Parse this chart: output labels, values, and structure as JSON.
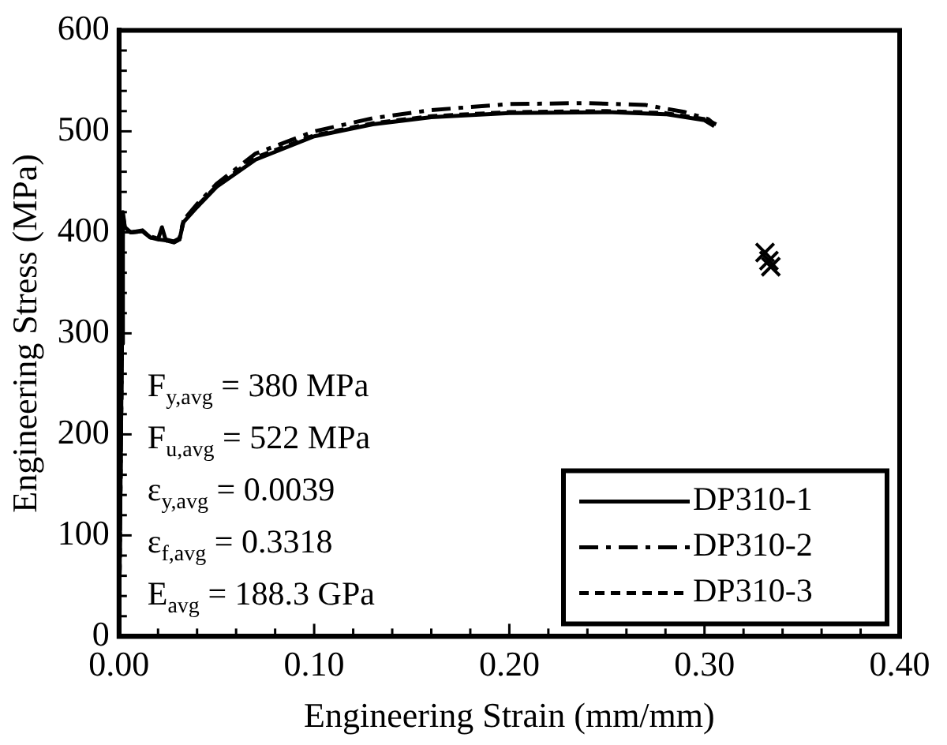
{
  "chart_data": {
    "type": "line",
    "xlabel": "Engineering Strain (mm/mm)",
    "ylabel": "Engineering Stress (MPa)",
    "xlim": [
      0,
      0.4
    ],
    "ylim": [
      0,
      600
    ],
    "xticks": [
      {
        "value": 0,
        "label": "0.00"
      },
      {
        "value": 0.02,
        "label": null
      },
      {
        "value": 0.04,
        "label": null
      },
      {
        "value": 0.06,
        "label": null
      },
      {
        "value": 0.08,
        "label": null
      },
      {
        "value": 0.1,
        "label": "0.10"
      },
      {
        "value": 0.12,
        "label": null
      },
      {
        "value": 0.14,
        "label": null
      },
      {
        "value": 0.16,
        "label": null
      },
      {
        "value": 0.18,
        "label": null
      },
      {
        "value": 0.2,
        "label": "0.20"
      },
      {
        "value": 0.22,
        "label": null
      },
      {
        "value": 0.24,
        "label": null
      },
      {
        "value": 0.26,
        "label": null
      },
      {
        "value": 0.28,
        "label": null
      },
      {
        "value": 0.3,
        "label": "0.30"
      },
      {
        "value": 0.32,
        "label": null
      },
      {
        "value": 0.34,
        "label": null
      },
      {
        "value": 0.36,
        "label": null
      },
      {
        "value": 0.38,
        "label": null
      },
      {
        "value": 0.4,
        "label": "0.40"
      }
    ],
    "yticks": [
      0,
      {
        "value": 20,
        "label": null
      },
      {
        "value": 40,
        "label": null
      },
      {
        "value": 60,
        "label": null
      },
      {
        "value": 80,
        "label": null
      },
      100,
      {
        "value": 120,
        "label": null
      },
      {
        "value": 140,
        "label": null
      },
      {
        "value": 160,
        "label": null
      },
      {
        "value": 180,
        "label": null
      },
      200,
      {
        "value": 220,
        "label": null
      },
      {
        "value": 240,
        "label": null
      },
      {
        "value": 260,
        "label": null
      },
      {
        "value": 280,
        "label": null
      },
      300,
      {
        "value": 320,
        "label": null
      },
      {
        "value": 340,
        "label": null
      },
      {
        "value": 360,
        "label": null
      },
      {
        "value": 380,
        "label": null
      },
      400,
      {
        "value": 420,
        "label": null
      },
      {
        "value": 440,
        "label": null
      },
      {
        "value": 460,
        "label": null
      },
      {
        "value": 480,
        "label": null
      },
      500,
      {
        "value": 520,
        "label": null
      },
      {
        "value": 540,
        "label": null
      },
      {
        "value": 560,
        "label": null
      },
      {
        "value": 580,
        "label": null
      },
      600
    ],
    "grid": false,
    "legend": "bottom right",
    "annotations": [
      "F$_{y,avg}$ = 380 MPa",
      "F$_{u,avg}$ = 522 MPa",
      "ε$_{y,avg}$ = 0.0039",
      "ε$_{f,avg}$ = 0.3318",
      "E$_{avg}$ = 188.3 GPa"
    ],
    "series": [
      {
        "name": "DP310-1",
        "color": "#000000",
        "line_style": "solid",
        "marker": "none",
        "x": [
          0,
          0.0015,
          0.002,
          0.003,
          0.006,
          0.012,
          0.016,
          0.02,
          0.022,
          0.024,
          0.028,
          0.031,
          0.033,
          0.04,
          0.05,
          0.07,
          0.1,
          0.13,
          0.16,
          0.2,
          0.25,
          0.28,
          0.3,
          0.305
        ],
        "values": [
          0,
          290,
          420,
          405,
          400,
          402,
          395,
          393,
          405,
          392,
          390,
          393,
          410,
          425,
          445,
          472,
          495,
          507,
          514,
          518,
          519,
          517,
          511,
          505
        ]
      },
      {
        "name": "DP310-2",
        "color": "#000000",
        "line_style": "dashdot",
        "marker": "none",
        "x": [
          0,
          0.0015,
          0.002,
          0.003,
          0.006,
          0.012,
          0.016,
          0.02,
          0.024,
          0.028,
          0.031,
          0.033,
          0.04,
          0.05,
          0.07,
          0.1,
          0.13,
          0.16,
          0.2,
          0.24,
          0.27,
          0.29,
          0.302,
          0.305
        ],
        "values": [
          0,
          290,
          415,
          403,
          400,
          401,
          396,
          394,
          393,
          391,
          394,
          412,
          428,
          448,
          478,
          500,
          513,
          521,
          527,
          528,
          526,
          519,
          512,
          507
        ]
      },
      {
        "name": "DP310-3",
        "color": "#000000",
        "line_style": "dashed",
        "marker": "none",
        "x": [
          0,
          0.0015,
          0.002,
          0.003,
          0.006,
          0.012,
          0.016,
          0.02,
          0.024,
          0.028,
          0.031,
          0.033,
          0.04,
          0.05,
          0.07,
          0.1,
          0.13,
          0.16,
          0.2,
          0.25,
          0.28,
          0.3,
          0.306
        ],
        "values": [
          0,
          290,
          418,
          404,
          400,
          401,
          395,
          393,
          392,
          390,
          393,
          411,
          426,
          446,
          474,
          496,
          508,
          515,
          519,
          520,
          518,
          512,
          507
        ]
      },
      {
        "type": "scatter",
        "color": "#000000",
        "marker": "cross",
        "x": [
          0.331,
          0.333,
          0.334
        ],
        "values": [
          380,
          372,
          366
        ]
      }
    ]
  }
}
